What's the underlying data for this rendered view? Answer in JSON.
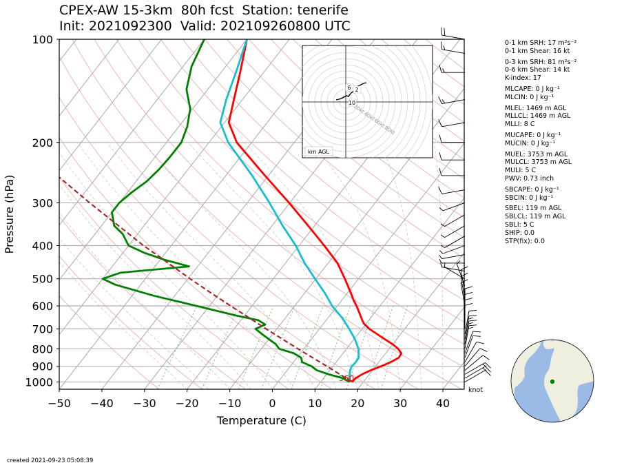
{
  "title": {
    "line1": "CPEX-AW 15-3km  80h fcst  Station: tenerife",
    "line2": "Init: 2021092300  Valid: 202109260800 UTC"
  },
  "created": "created 2021-09-23 05:08:39",
  "colors": {
    "temperature": "#ff0000",
    "dewpoint": "#008000",
    "wetbulb": "#17becf",
    "parcel": "#a52a2a",
    "isobar": "#b0b0b0",
    "dry_adiabat": "#f4b4b4",
    "moist_adiabat": "#c8c8c8",
    "mixing_ratio": "#74c476",
    "ocean": "#9bbbe6",
    "land": "#efefdf",
    "station_dot": "#008000"
  },
  "chart_data": {
    "type": "line",
    "chart_kind": "skew-T log-P diagram",
    "xlabel": "Temperature (C)",
    "ylabel": "Pressure (hPa)",
    "xlim": [
      -50,
      45
    ],
    "ylim": [
      1050,
      100
    ],
    "y_scale": "log",
    "x_ticks": [
      "−50",
      "−40",
      "−30",
      "−20",
      "−10",
      "0",
      "10",
      "20",
      "30",
      "40"
    ],
    "y_ticks": [
      "100",
      "200",
      "300",
      "400",
      "500",
      "600",
      "700",
      "800",
      "900",
      "1000"
    ],
    "grid": true,
    "series": [
      {
        "key": "temperature",
        "color": "#ff0000",
        "pressure": [
          1000,
          975,
          950,
          925,
          900,
          875,
          850,
          825,
          800,
          775,
          750,
          725,
          700,
          675,
          650,
          625,
          600,
          575,
          550,
          500,
          450,
          400,
          350,
          300,
          250,
          200,
          175,
          150,
          125,
          100
        ],
        "temperature": [
          17.4,
          17.5,
          18.3,
          19.6,
          21.3,
          22.8,
          23.9,
          23.7,
          22.1,
          19.9,
          17.2,
          14.5,
          11.7,
          9.4,
          7.8,
          6.2,
          4.5,
          2.6,
          0.8,
          -3.2,
          -7.8,
          -14.1,
          -21.5,
          -30.2,
          -40.8,
          -53.5,
          -59.0,
          -62.0,
          -65.5,
          -70.0
        ]
      },
      {
        "key": "wetbulb",
        "color": "#17becf",
        "pressure": [
          1000,
          975,
          950,
          925,
          900,
          875,
          850,
          800,
          750,
          700,
          650,
          600,
          550,
          500,
          450,
          400,
          350,
          300,
          250,
          200,
          175,
          150,
          125,
          100
        ],
        "temperature": [
          16.8,
          16.0,
          15.4,
          14.8,
          14.4,
          14.6,
          14.5,
          12.8,
          10.2,
          7.0,
          3.3,
          -1.2,
          -5.3,
          -10.2,
          -15.5,
          -20.8,
          -27.5,
          -34.8,
          -43.8,
          -55.5,
          -61.0,
          -63.8,
          -66.5,
          -70.0
        ]
      },
      {
        "key": "dewpoint",
        "color": "#008000",
        "pressure": [
          1000,
          975,
          950,
          925,
          900,
          875,
          850,
          825,
          800,
          775,
          750,
          725,
          700,
          680,
          660,
          640,
          600,
          560,
          520,
          500,
          480,
          460,
          440,
          420,
          400,
          370,
          350,
          320,
          300,
          280,
          260,
          240,
          220,
          200,
          180,
          160,
          140,
          120,
          100
        ],
        "temperature": [
          16.8,
          14.5,
          10.5,
          7.0,
          5.0,
          2.0,
          1.0,
          -1.5,
          -5.8,
          -7.5,
          -10.0,
          -12.5,
          -15.0,
          -13.5,
          -16.0,
          -22.0,
          -33.0,
          -45.0,
          -56.0,
          -60.0,
          -57.0,
          -42.0,
          -49.0,
          -55.0,
          -60.0,
          -63.5,
          -67.0,
          -70.0,
          -70.0,
          -69.0,
          -67.5,
          -66.8,
          -66.5,
          -66.5,
          -68.0,
          -70.5,
          -75.0,
          -78.0,
          -80.0
        ]
      },
      {
        "key": "parcel",
        "color": "#a52a2a",
        "dashed": true,
        "pressure": [
          1000,
          975,
          950,
          925,
          900,
          875,
          850,
          825,
          800,
          750,
          700,
          650,
          600,
          550,
          500,
          450,
          400,
          350,
          300,
          250,
          200,
          150,
          100
        ],
        "temperature": [
          17.4,
          15.3,
          13.1,
          10.9,
          8.6,
          6.2,
          3.7,
          1.2,
          -1.4,
          -6.8,
          -12.5,
          -18.5,
          -25.0,
          -32.0,
          -39.5,
          -47.5,
          -56.5,
          -66.0,
          -77.0,
          -89.5,
          -104.0,
          -121.0,
          -143.0
        ]
      }
    ],
    "surface_labels": [
      {
        "text": "56",
        "color": "#008000"
      },
      {
        "text": "60",
        "color": "#ff0000"
      }
    ],
    "wind_barbs": {
      "units_label": "knot",
      "pressure": [
        1000,
        975,
        950,
        925,
        900,
        875,
        850,
        825,
        800,
        775,
        750,
        725,
        700,
        675,
        650,
        625,
        600,
        575,
        550,
        525,
        500,
        475,
        450,
        425,
        400,
        375,
        350,
        325,
        300,
        275,
        250,
        225,
        200,
        175,
        150,
        125,
        110,
        100
      ],
      "speed_kt": [
        10,
        15,
        15,
        10,
        10,
        10,
        10,
        10,
        15,
        15,
        15,
        10,
        10,
        10,
        10,
        10,
        10,
        10,
        10,
        5,
        5,
        5,
        5,
        5,
        5,
        5,
        5,
        5,
        5,
        10,
        10,
        10,
        10,
        10,
        15,
        15,
        15,
        20
      ],
      "dir_deg": [
        60,
        60,
        60,
        50,
        40,
        30,
        20,
        20,
        10,
        10,
        10,
        10,
        360,
        360,
        360,
        360,
        350,
        350,
        350,
        340,
        300,
        280,
        270,
        260,
        250,
        240,
        240,
        240,
        250,
        260,
        270,
        270,
        270,
        260,
        260,
        270,
        280,
        280
      ]
    },
    "hodograph": {
      "label": "km AGL",
      "ring_labels": [
        "20kt",
        "40kt",
        "60kt",
        "80kt"
      ],
      "height_labels": [
        "6",
        "2",
        "10"
      ]
    },
    "indices": [
      "0-1 km SRH: 17 m²s⁻²",
      "0-1 km Shear: 16 kt",
      "0-3 km SRH: 81 m²s⁻²",
      "0-6 km Shear: 14 kt",
      "K-index: 17",
      "MLCAPE: 0 J kg⁻¹",
      "MLCIN: 0 J kg⁻¹",
      "MLEL: 1469 m AGL",
      "MLLCL: 1469 m AGL",
      "MLLI: 8 C",
      "MUCAPE: 0 J kg⁻¹",
      "MUCIN: 0 J kg⁻¹",
      "MUEL: 3753 m AGL",
      "MULCL: 3753 m AGL",
      "MULI: 5 C",
      "PWV: 0.73 inch",
      "SBCAPE: 0 J kg⁻¹",
      "SBCIN: 0 J kg⁻¹",
      "SBEL: 119 m AGL",
      "SBLCL: 119 m AGL",
      "SBLI: 5 C",
      "SHIP: 0.0",
      "STP(fix): 0.0"
    ]
  }
}
